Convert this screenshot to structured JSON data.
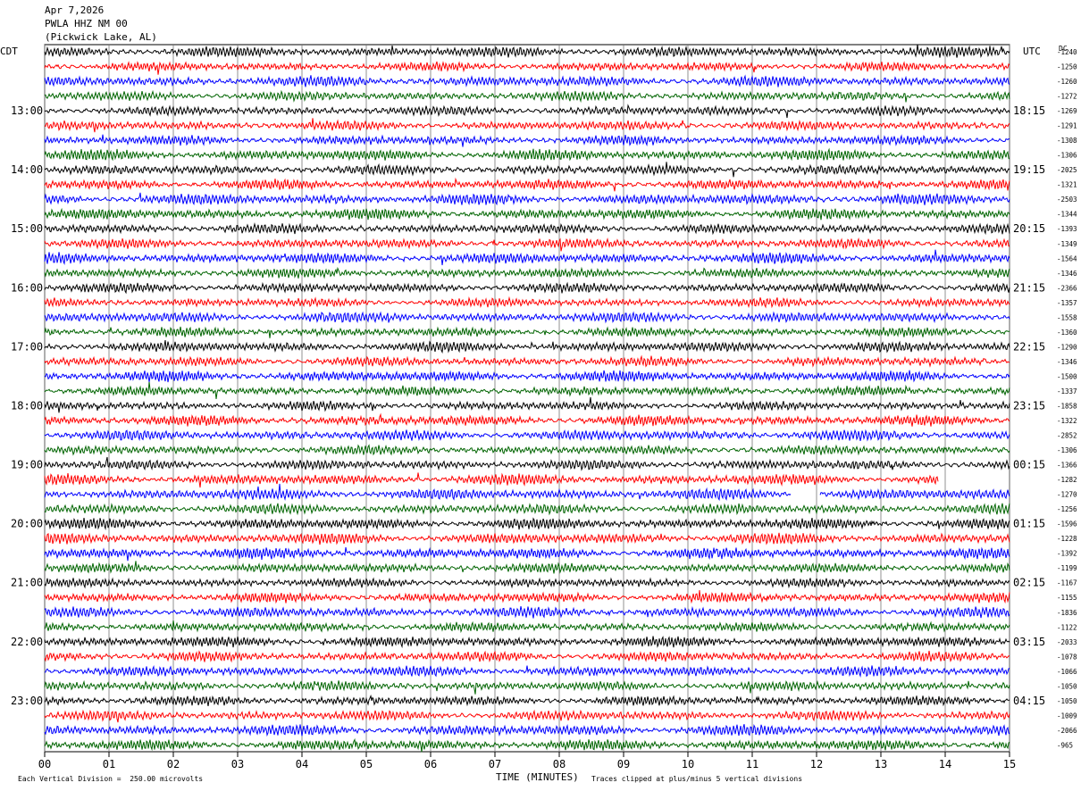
{
  "header": {
    "date": "Apr 7,2026",
    "station": "PWLA HHZ NM 00",
    "location": "(Pickwick Lake, AL)"
  },
  "tz_left": "CDT",
  "tz_right": "UTC",
  "dc_label": "DC",
  "footer": {
    "scale_note": "Each Vertical Division =  250.00 microvolts",
    "clip_note": "Traces clipped at plus/minus 5 vertical divisions"
  },
  "chart_data": {
    "type": "line",
    "title": "",
    "xlabel": "TIME (MINUTES)",
    "ylabel": "",
    "xlim": [
      0,
      15
    ],
    "x_ticks": [
      "00",
      "01",
      "02",
      "03",
      "04",
      "05",
      "06",
      "07",
      "08",
      "09",
      "10",
      "11",
      "12",
      "13",
      "14",
      "15"
    ],
    "left_hour_labels": [
      "13:00",
      "14:00",
      "15:00",
      "16:00",
      "17:00",
      "18:00",
      "19:00",
      "20:00",
      "21:00",
      "22:00",
      "23:00"
    ],
    "right_hour_labels": [
      "18:15",
      "19:15",
      "20:15",
      "21:15",
      "22:15",
      "23:15",
      "00:15",
      "01:15",
      "02:15",
      "03:15",
      "04:15"
    ],
    "trace_colors": [
      "#000000",
      "#ff0000",
      "#0000ff",
      "#006400"
    ],
    "trace_count": 48,
    "grid": true,
    "dc_offsets": [
      "-1240",
      "-1250",
      "-1260",
      "-1272",
      "-1269",
      "-1291",
      "-1308",
      "-1306",
      "-2025",
      "-1321",
      "-2503",
      "-1344",
      "-1393",
      "-1349",
      "-1564",
      "-1346",
      "-2366",
      "-1357",
      "-1558",
      "-1360",
      "-1290",
      "-1346",
      "-1500",
      "-1337",
      "-1858",
      "-1322",
      "-2852",
      "-1306",
      "-1366",
      "-1282",
      "-1270",
      "-1256",
      "-1596",
      "-1228",
      "-1392",
      "-1199",
      "-1167",
      "-1155",
      "-1836",
      "-1122",
      "-2033",
      "-1078",
      "-1066",
      "-1050",
      "-1050",
      "-1009",
      "-2066",
      "-965"
    ],
    "gap": {
      "trace_index": 29,
      "start_minute": 13.9,
      "end_minute": 15
    },
    "gap2": {
      "trace_index": 30,
      "start_minute": 11.6,
      "end_minute": 12.05
    }
  }
}
